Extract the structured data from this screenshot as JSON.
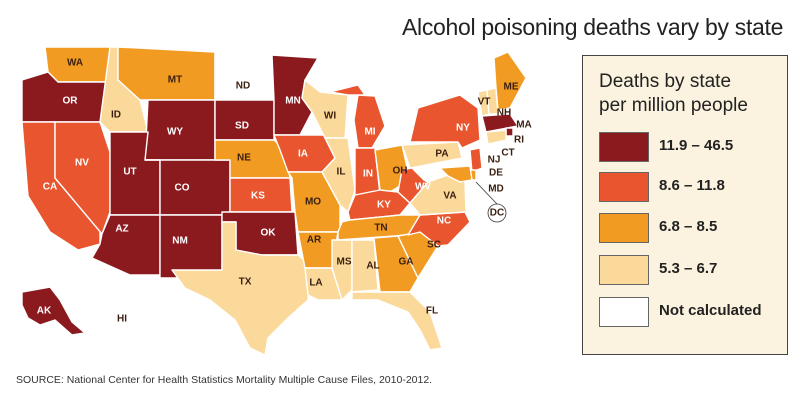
{
  "title": "Alcohol poisoning deaths vary by state",
  "legend": {
    "title_line1": "Deaths by state",
    "title_line2": "per million people",
    "items": [
      {
        "label": "11.9 – 46.5",
        "color": "#8b1a1f"
      },
      {
        "label": "8.6 – 11.8",
        "color": "#e8552e"
      },
      {
        "label": "6.8 – 8.5",
        "color": "#f29b23"
      },
      {
        "label": "5.3 – 6.7",
        "color": "#fbd99a"
      },
      {
        "label": "Not calculated",
        "color": "#ffffff"
      }
    ]
  },
  "source": "SOURCE: National Center for Health Statistics Mortality Multiple Cause Files, 2010-2012.",
  "states": [
    {
      "abbr": "WA",
      "category": 2
    },
    {
      "abbr": "OR",
      "category": 0
    },
    {
      "abbr": "CA",
      "category": 1
    },
    {
      "abbr": "NV",
      "category": 1
    },
    {
      "abbr": "ID",
      "category": 3
    },
    {
      "abbr": "MT",
      "category": 2
    },
    {
      "abbr": "WY",
      "category": 0
    },
    {
      "abbr": "UT",
      "category": 0
    },
    {
      "abbr": "AZ",
      "category": 0
    },
    {
      "abbr": "CO",
      "category": 0
    },
    {
      "abbr": "NM",
      "category": 0
    },
    {
      "abbr": "ND",
      "category": 4
    },
    {
      "abbr": "SD",
      "category": 0
    },
    {
      "abbr": "NE",
      "category": 2
    },
    {
      "abbr": "KS",
      "category": 1
    },
    {
      "abbr": "OK",
      "category": 0
    },
    {
      "abbr": "TX",
      "category": 3
    },
    {
      "abbr": "MN",
      "category": 0
    },
    {
      "abbr": "IA",
      "category": 1
    },
    {
      "abbr": "MO",
      "category": 2
    },
    {
      "abbr": "AR",
      "category": 2
    },
    {
      "abbr": "LA",
      "category": 3
    },
    {
      "abbr": "WI",
      "category": 3
    },
    {
      "abbr": "IL",
      "category": 3
    },
    {
      "abbr": "MI",
      "category": 1
    },
    {
      "abbr": "IN",
      "category": 1
    },
    {
      "abbr": "OH",
      "category": 2
    },
    {
      "abbr": "KY",
      "category": 1
    },
    {
      "abbr": "TN",
      "category": 2
    },
    {
      "abbr": "MS",
      "category": 3
    },
    {
      "abbr": "AL",
      "category": 3
    },
    {
      "abbr": "GA",
      "category": 2
    },
    {
      "abbr": "FL",
      "category": 3
    },
    {
      "abbr": "SC",
      "category": 2
    },
    {
      "abbr": "NC",
      "category": 1
    },
    {
      "abbr": "VA",
      "category": 3
    },
    {
      "abbr": "WV",
      "category": 1
    },
    {
      "abbr": "PA",
      "category": 3
    },
    {
      "abbr": "NY",
      "category": 1
    },
    {
      "abbr": "VT",
      "category": 3
    },
    {
      "abbr": "NH",
      "category": 3
    },
    {
      "abbr": "ME",
      "category": 2
    },
    {
      "abbr": "MA",
      "category": 0
    },
    {
      "abbr": "RI",
      "category": 0
    },
    {
      "abbr": "CT",
      "category": 3
    },
    {
      "abbr": "NJ",
      "category": 1
    },
    {
      "abbr": "DE",
      "category": 2
    },
    {
      "abbr": "MD",
      "category": 2
    },
    {
      "abbr": "DC",
      "category": 4
    },
    {
      "abbr": "AK",
      "category": 0
    },
    {
      "abbr": "HI",
      "category": 4
    }
  ]
}
